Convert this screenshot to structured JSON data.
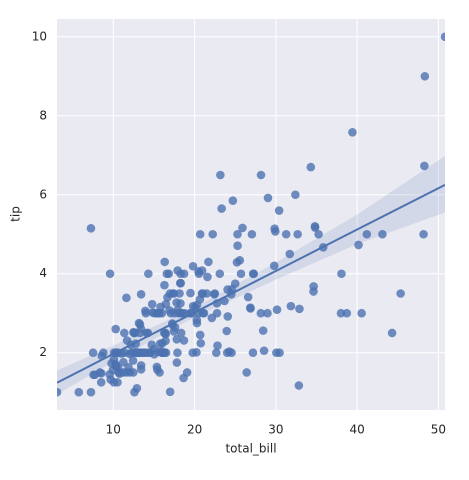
{
  "chart_data": {
    "type": "regplot",
    "x_label": "total_bill",
    "y_label": "tip",
    "color": "#4c72b0",
    "background": "#eaeaf2",
    "grid": true,
    "xlim": [
      3.07,
      50.81
    ],
    "ylim": [
      0.55,
      10.45
    ],
    "xticks": [
      10,
      20,
      30,
      40,
      50
    ],
    "yticks": [
      2,
      4,
      6,
      8,
      10
    ],
    "x": [
      16.99,
      10.34,
      21.01,
      23.68,
      24.59,
      25.29,
      8.77,
      26.88,
      15.04,
      14.78,
      10.27,
      35.26,
      15.42,
      18.43,
      14.83,
      21.58,
      10.33,
      16.29,
      16.97,
      20.65,
      17.92,
      20.29,
      15.77,
      39.42,
      19.82,
      17.81,
      13.37,
      12.69,
      21.7,
      19.65,
      9.55,
      18.35,
      15.06,
      20.69,
      17.78,
      24.06,
      16.31,
      16.93,
      18.69,
      31.27,
      16.04,
      17.46,
      13.94,
      9.68,
      30.4,
      18.29,
      22.23,
      32.4,
      28.55,
      18.04,
      12.54,
      10.29,
      34.81,
      9.94,
      25.56,
      19.49,
      38.01,
      26.41,
      11.24,
      48.27,
      20.29,
      13.81,
      11.02,
      18.29,
      17.59,
      20.08,
      16.45,
      3.07,
      20.23,
      15.01,
      12.02,
      17.07,
      26.86,
      25.28,
      14.73,
      10.51,
      17.92,
      27.2,
      22.76,
      17.29,
      19.44,
      16.66,
      10.07,
      32.68,
      15.98,
      34.83,
      13.03,
      18.28,
      24.71,
      21.16,
      28.97,
      22.49,
      5.75,
      16.32,
      22.75,
      40.17,
      27.28,
      12.03,
      21.01,
      12.46,
      11.35,
      15.38,
      44.3,
      22.42,
      20.92,
      15.36,
      20.49,
      25.21,
      18.24,
      14.31,
      14.0,
      7.25,
      38.07,
      23.95,
      25.71,
      17.31,
      29.93,
      10.65,
      12.43,
      24.08,
      11.69,
      13.42,
      14.26,
      15.95,
      12.48,
      29.8,
      8.52,
      14.52,
      11.38,
      22.82,
      19.08,
      20.27,
      11.17,
      12.26,
      18.26,
      8.51,
      10.33,
      14.15,
      16.0,
      13.16,
      17.47,
      34.3,
      41.19,
      27.05,
      16.43,
      8.35,
      18.64,
      11.87,
      9.78,
      7.51,
      14.07,
      13.13,
      17.26,
      24.55,
      19.77,
      29.85,
      48.17,
      25.0,
      13.39,
      16.49,
      21.5,
      12.66,
      16.21,
      13.81,
      17.51,
      24.52,
      20.76,
      31.71,
      10.59,
      10.63,
      50.81,
      15.81,
      7.25,
      31.85,
      16.82,
      32.9,
      17.89,
      14.48,
      9.6,
      34.63,
      34.65,
      23.33,
      45.35,
      23.17,
      40.55,
      20.69,
      20.9,
      30.46,
      18.15,
      23.1,
      15.69,
      19.81,
      28.44,
      15.48,
      16.58,
      7.56,
      10.34,
      43.11,
      13.0,
      13.51,
      18.71,
      12.74,
      13.0,
      16.4,
      20.53,
      16.47,
      26.59,
      38.73,
      24.27,
      12.76,
      30.06,
      25.89,
      48.33,
      13.27,
      28.17,
      12.9,
      28.15,
      11.59,
      7.74,
      30.14,
      12.16,
      13.42,
      8.58,
      15.98,
      13.42,
      16.27,
      10.09,
      20.45,
      13.28,
      22.12,
      24.01,
      15.69,
      11.61,
      10.77,
      15.53,
      10.07,
      12.6,
      32.83,
      35.83,
      29.03,
      27.18,
      22.67,
      17.82,
      18.78
    ],
    "y": [
      1.01,
      1.66,
      3.5,
      3.31,
      3.61,
      4.71,
      2.0,
      3.12,
      1.96,
      3.23,
      1.71,
      5.0,
      1.57,
      3.0,
      3.02,
      3.92,
      1.67,
      3.71,
      3.5,
      3.35,
      4.08,
      2.75,
      2.23,
      7.58,
      3.18,
      2.34,
      2.0,
      2.0,
      4.3,
      3.0,
      1.45,
      2.5,
      3.0,
      2.45,
      3.27,
      3.6,
      2.0,
      3.07,
      2.31,
      5.0,
      2.24,
      2.54,
      3.06,
      1.32,
      5.6,
      3.0,
      5.0,
      6.0,
      2.05,
      3.0,
      2.5,
      2.6,
      5.2,
      1.56,
      4.34,
      3.51,
      3.0,
      1.5,
      1.76,
      6.73,
      3.21,
      2.0,
      1.98,
      3.76,
      2.64,
      3.15,
      2.47,
      1.0,
      2.01,
      2.09,
      1.97,
      3.0,
      3.14,
      5.0,
      2.2,
      1.25,
      3.08,
      4.0,
      3.0,
      2.71,
      3.0,
      3.4,
      1.83,
      5.0,
      2.03,
      5.17,
      2.0,
      4.0,
      5.85,
      3.0,
      3.0,
      3.5,
      1.0,
      4.3,
      3.25,
      4.73,
      4.0,
      1.5,
      3.0,
      1.5,
      2.5,
      3.0,
      2.5,
      3.48,
      4.08,
      1.64,
      4.06,
      4.29,
      3.76,
      4.0,
      3.0,
      1.0,
      4.0,
      2.55,
      4.0,
      3.5,
      5.07,
      1.5,
      1.8,
      2.92,
      2.31,
      1.68,
      2.5,
      2.0,
      2.52,
      4.2,
      1.48,
      2.0,
      2.0,
      2.18,
      1.5,
      2.83,
      1.5,
      2.0,
      3.25,
      1.25,
      2.0,
      2.0,
      2.0,
      2.75,
      3.5,
      6.7,
      5.0,
      5.0,
      2.3,
      1.5,
      1.36,
      1.63,
      1.73,
      2.0,
      2.5,
      2.0,
      2.74,
      2.0,
      2.0,
      5.14,
      5.0,
      3.75,
      2.61,
      2.0,
      3.5,
      2.5,
      2.0,
      2.0,
      3.0,
      3.48,
      2.24,
      4.5,
      1.61,
      2.0,
      10.0,
      3.16,
      5.15,
      3.18,
      4.0,
      3.11,
      2.0,
      2.0,
      4.0,
      3.55,
      3.68,
      5.65,
      3.5,
      6.5,
      3.0,
      5.0,
      3.5,
      2.0,
      3.5,
      4.0,
      1.5,
      4.19,
      2.56,
      2.02,
      4.0,
      1.44,
      2.0,
      5.0,
      2.0,
      2.0,
      4.0,
      2.01,
      2.0,
      2.5,
      4.0,
      3.23,
      3.41,
      3.0,
      2.03,
      2.23,
      2.0,
      5.16,
      9.0,
      2.5,
      6.5,
      1.1,
      3.0,
      1.5,
      1.44,
      3.09,
      2.2,
      3.48,
      1.92,
      3.0,
      1.58,
      2.5,
      2.0,
      3.0,
      2.72,
      2.88,
      2.0,
      3.0,
      3.39,
      1.47,
      3.0,
      1.25,
      1.0,
      1.17,
      4.67,
      5.92,
      2.0,
      2.0,
      1.75,
      3.0
    ],
    "regression": {
      "x": [
        3.07,
        10,
        20,
        30,
        40,
        50.81
      ],
      "y": [
        1.24,
        1.97,
        3.02,
        4.07,
        5.12,
        6.25
      ],
      "lower": [
        0.95,
        1.77,
        2.9,
        3.85,
        4.75,
        5.55
      ],
      "upper": [
        1.55,
        2.18,
        3.15,
        4.28,
        5.5,
        6.98
      ]
    }
  }
}
